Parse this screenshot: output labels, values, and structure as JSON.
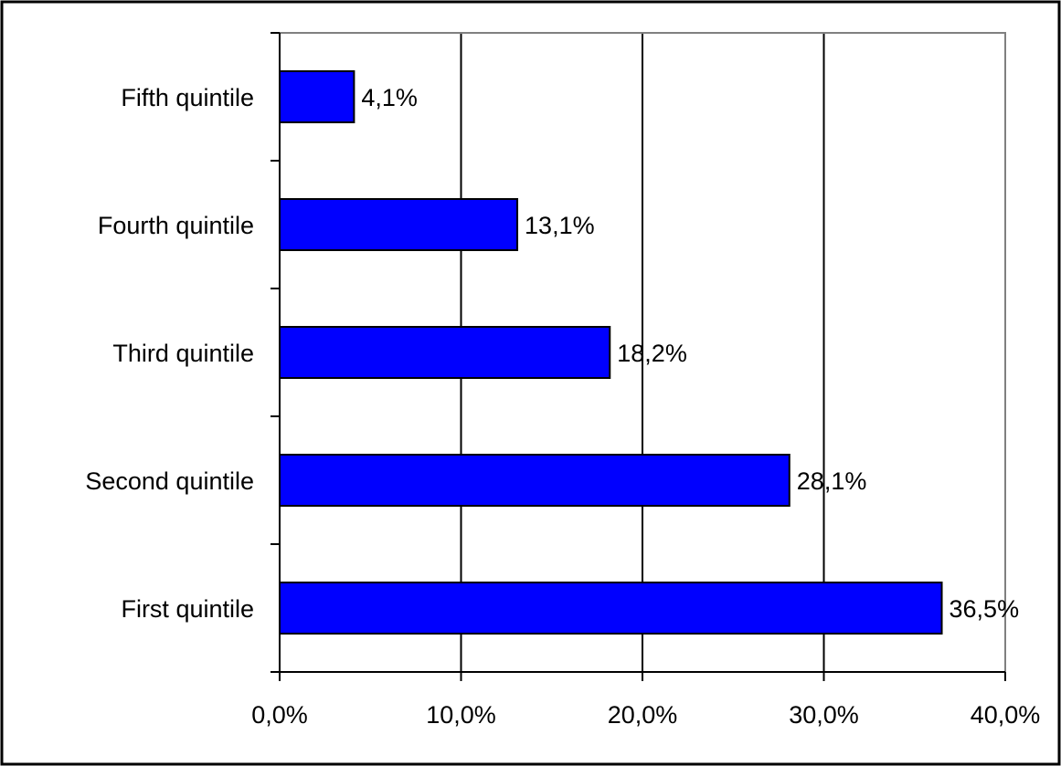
{
  "chart_data": {
    "type": "bar",
    "orientation": "horizontal",
    "categories": [
      "Fifth quintile",
      "Fourth quintile",
      "Third quintile",
      "Second quintile",
      "First quintile"
    ],
    "values": [
      4.1,
      13.1,
      18.2,
      28.1,
      36.5
    ],
    "value_labels": [
      "4,1%",
      "13,1%",
      "18,2%",
      "28,1%",
      "36,5%"
    ],
    "x_ticks": [
      0,
      10,
      20,
      30,
      40
    ],
    "x_tick_labels": [
      "0,0%",
      "10,0%",
      "20,0%",
      "30,0%",
      "40,0%"
    ],
    "xlim": [
      0,
      40
    ],
    "grid": "vertical",
    "legend": "none",
    "title": "",
    "xlabel": "",
    "ylabel": "",
    "colors": {
      "bar_fill": "#0000ff",
      "bar_stroke": "#000000",
      "gridline": "#000000",
      "plot_border": "#808080",
      "frame_border": "#000000"
    }
  }
}
